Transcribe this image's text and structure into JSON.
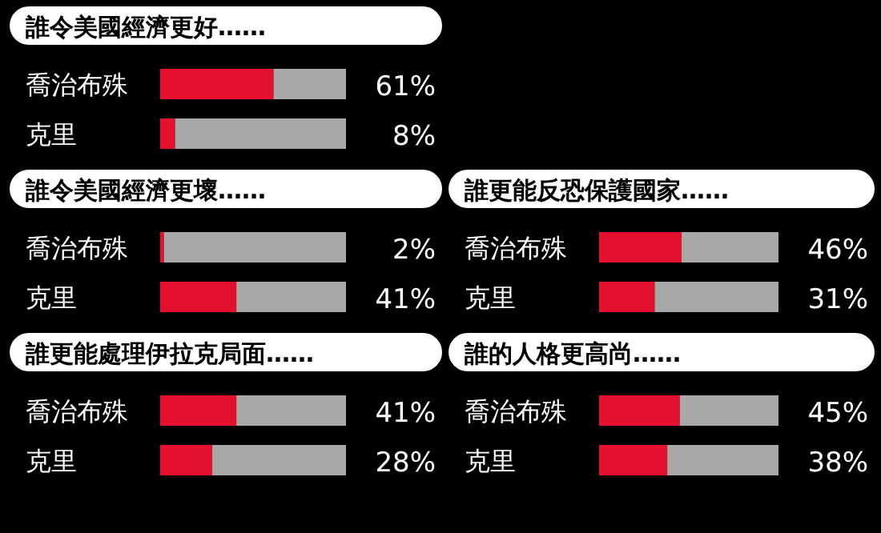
{
  "chart_data": [
    {
      "type": "bar",
      "orientation": "horizontal",
      "stacked": true,
      "title": "誰令美國經濟更好……",
      "categories": [
        "喬治布殊",
        "克里"
      ],
      "xlim": [
        0,
        100
      ],
      "tick_labels": "y",
      "series": [
        {
          "color": "#e3102e",
          "values": [
            61,
            8
          ],
          "value_labels": [
            "61%",
            "8%"
          ]
        },
        {
          "color": "#a8a8a8",
          "values": [
            39,
            92
          ]
        }
      ]
    },
    {
      "type": "bar",
      "orientation": "horizontal",
      "stacked": true,
      "title": "誰令美國經濟更壞……",
      "categories": [
        "喬治布殊",
        "克里"
      ],
      "xlim": [
        0,
        100
      ],
      "tick_labels": "y",
      "series": [
        {
          "color": "#e3102e",
          "values": [
            2,
            41
          ],
          "value_labels": [
            "2%",
            "41%"
          ]
        },
        {
          "color": "#a8a8a8",
          "values": [
            98,
            59
          ]
        }
      ]
    },
    {
      "type": "bar",
      "orientation": "horizontal",
      "stacked": true,
      "title": "誰更能反恐保護國家……",
      "categories": [
        "喬治布殊",
        "克里"
      ],
      "xlim": [
        0,
        100
      ],
      "tick_labels": "y",
      "series": [
        {
          "color": "#e3102e",
          "values": [
            46,
            31
          ],
          "value_labels": [
            "46%",
            "31%"
          ]
        },
        {
          "color": "#a8a8a8",
          "values": [
            54,
            69
          ]
        }
      ]
    },
    {
      "type": "bar",
      "orientation": "horizontal",
      "stacked": true,
      "title": "誰更能處理伊拉克局面……",
      "categories": [
        "喬治布殊",
        "克里"
      ],
      "xlim": [
        0,
        100
      ],
      "tick_labels": "y",
      "series": [
        {
          "color": "#e3102e",
          "values": [
            41,
            28
          ],
          "value_labels": [
            "41%",
            "28%"
          ]
        },
        {
          "color": "#a8a8a8",
          "values": [
            59,
            72
          ]
        }
      ]
    },
    {
      "type": "bar",
      "orientation": "horizontal",
      "stacked": true,
      "title": "誰的人格更高尚……",
      "categories": [
        "喬治布殊",
        "克里"
      ],
      "xlim": [
        0,
        100
      ],
      "tick_labels": "y",
      "series": [
        {
          "color": "#e3102e",
          "values": [
            45,
            38
          ],
          "value_labels": [
            "45%",
            "38%"
          ]
        },
        {
          "color": "#a8a8a8",
          "values": [
            55,
            62
          ]
        }
      ]
    }
  ]
}
